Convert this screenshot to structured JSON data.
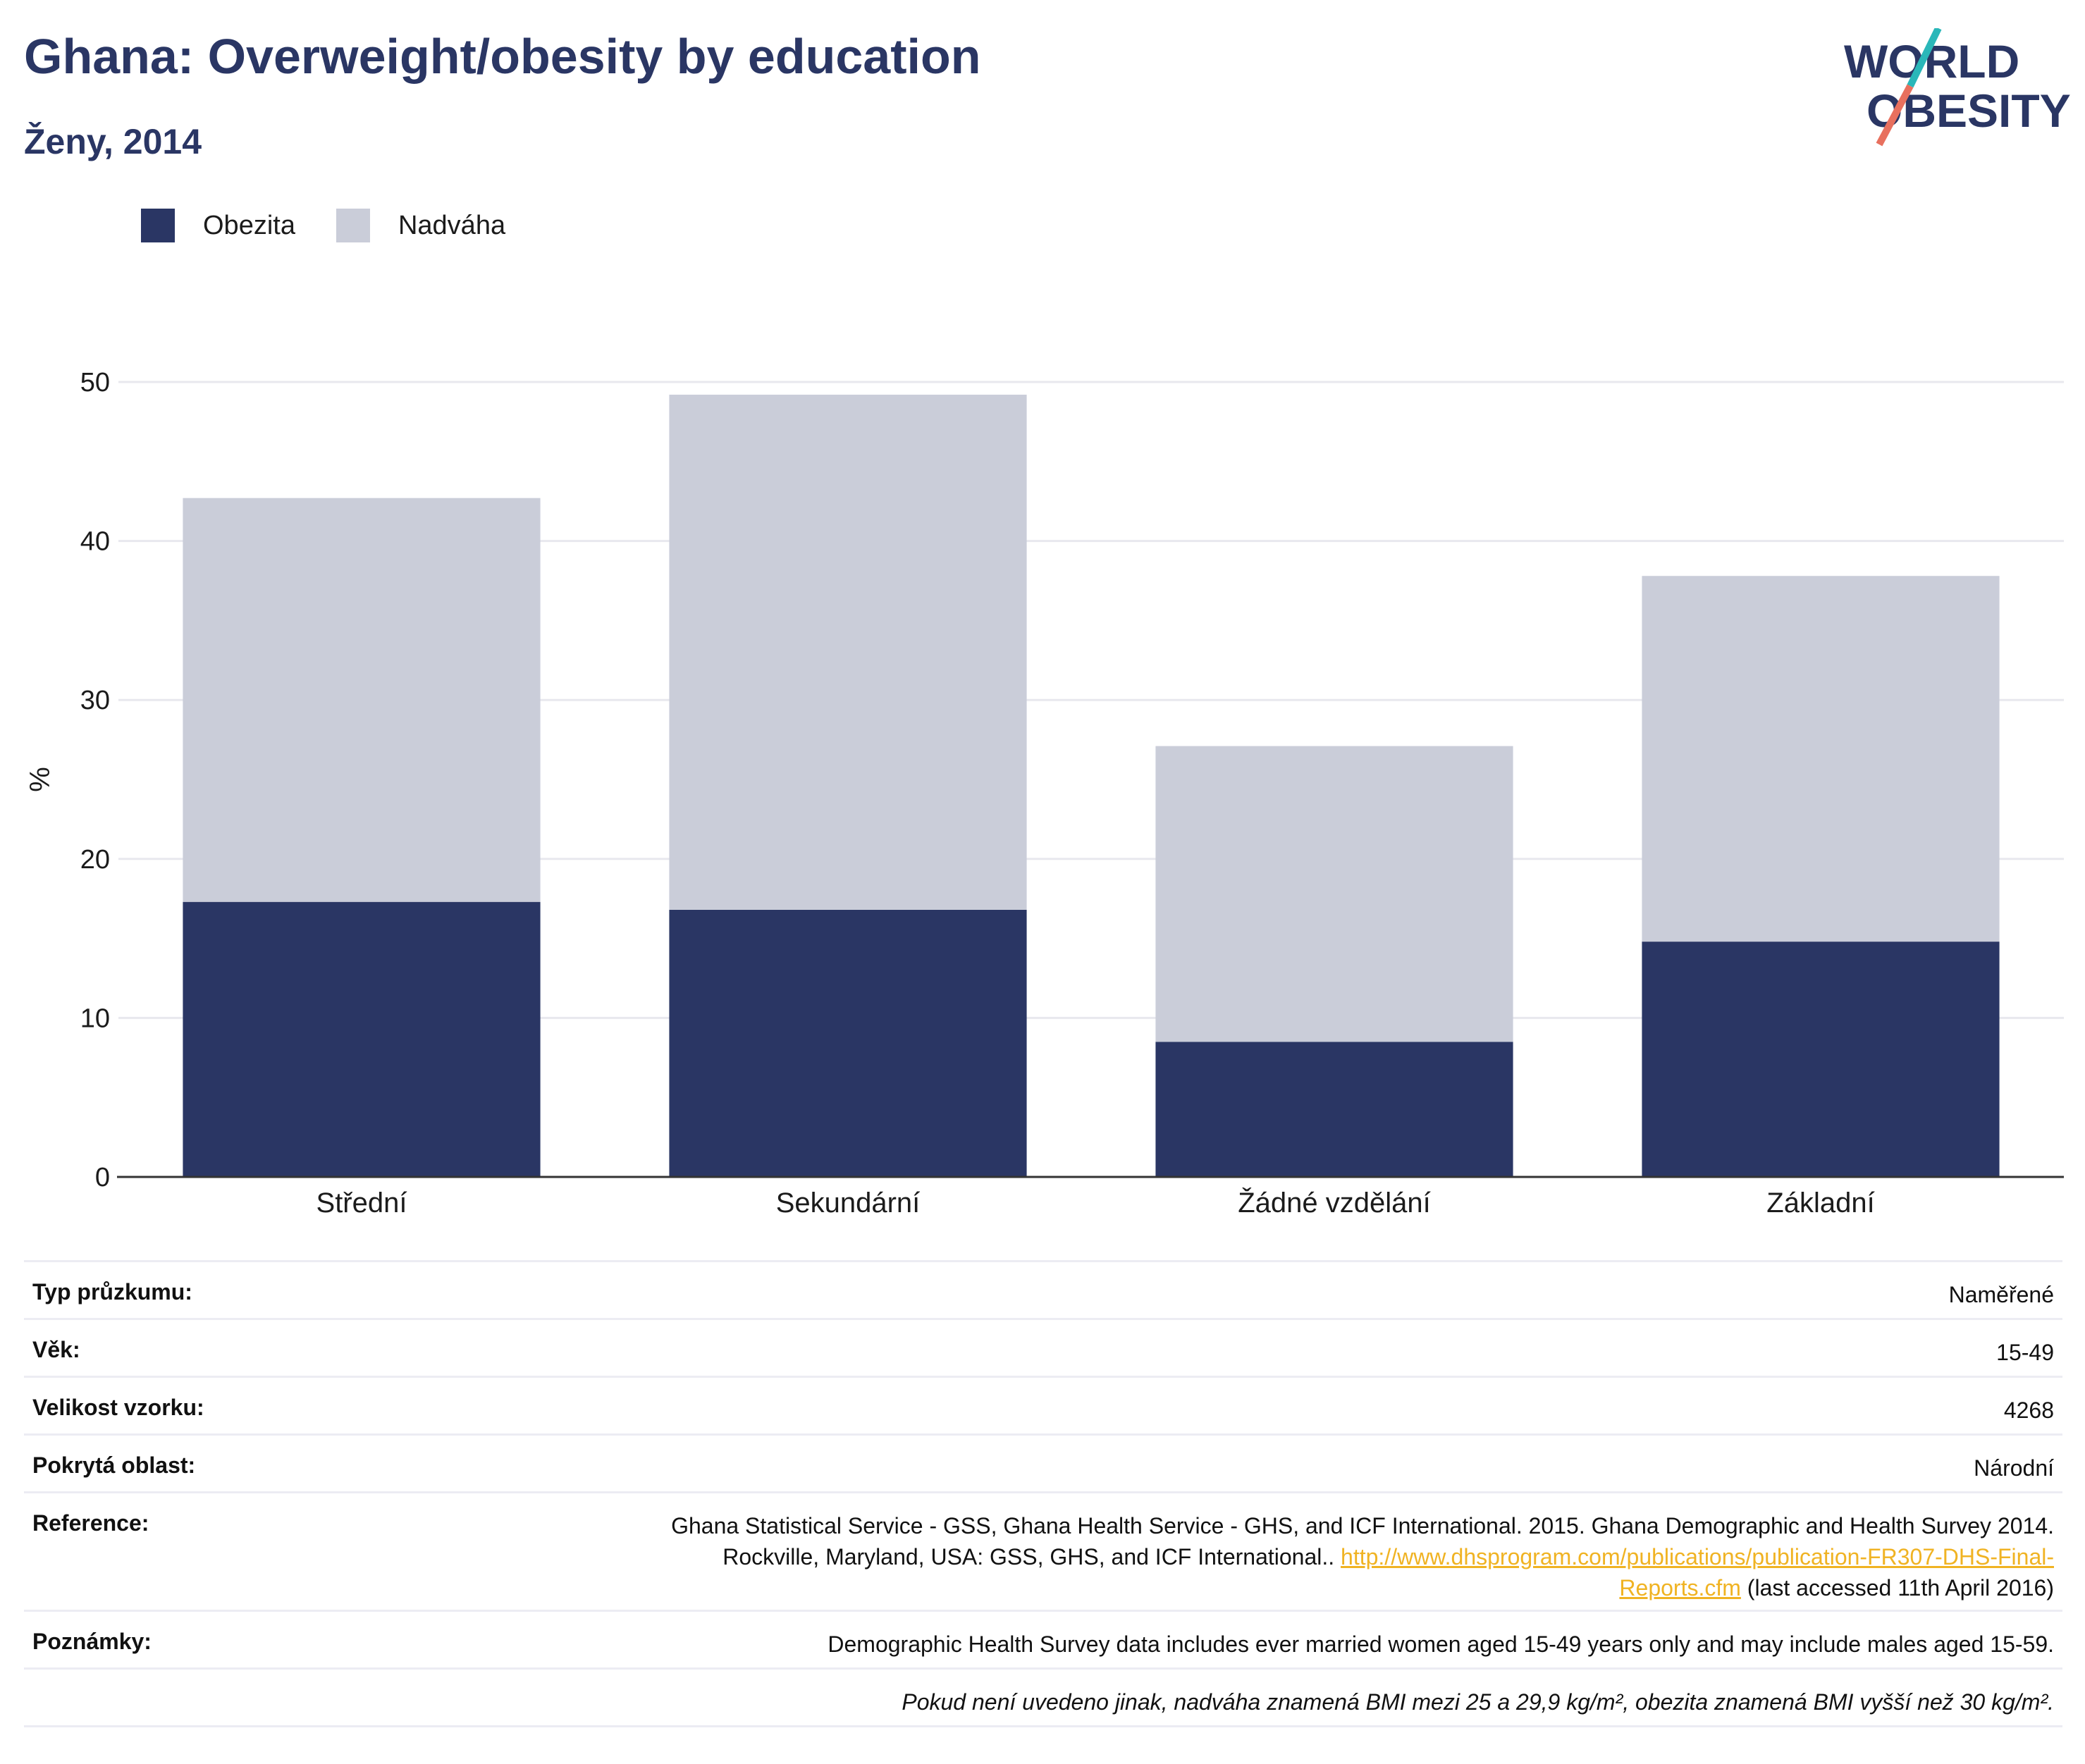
{
  "header": {
    "title": "Ghana: Overweight/obesity by education",
    "subtitle": "Ženy, 2014",
    "logo_line1": "WORLD",
    "logo_line2": "OBESITY"
  },
  "colors": {
    "obesity": "#2a3664",
    "overweight": "#cacdd9",
    "title": "#2a3664",
    "link": "#f0b323",
    "logo_teal": "#2ab7b9",
    "logo_coral": "#e8705e"
  },
  "chart_data": {
    "type": "bar",
    "stacked": true,
    "title": "Ghana: Overweight/obesity by education",
    "subtitle": "Ženy, 2014",
    "categories": [
      "Střední",
      "Sekundární",
      "Žádné vzdělání",
      "Základní"
    ],
    "series": [
      {
        "name": "Obezita",
        "values": [
          17.3,
          16.8,
          8.5,
          14.8
        ]
      },
      {
        "name": "Nadváha",
        "values": [
          25.4,
          32.4,
          18.6,
          23.0
        ]
      }
    ],
    "ylabel": "%",
    "xlabel": "",
    "ylim": [
      0,
      50
    ],
    "yticks": [
      0,
      10,
      20,
      30,
      40,
      50
    ],
    "grid": true,
    "legend": "top-left"
  },
  "info": {
    "survey_type": {
      "label": "Typ průzkumu:",
      "value": "Naměřené"
    },
    "age": {
      "label": "Věk:",
      "value": "15-49"
    },
    "sample": {
      "label": "Velikost vzorku:",
      "value": "4268"
    },
    "area": {
      "label": "Pokrytá oblast:",
      "value": "Národní"
    },
    "reference": {
      "label": "Reference:",
      "text1": "Ghana Statistical Service - GSS, Ghana Health Service - GHS, and ICF International. 2015. Ghana Demographic and Health Survey 2014.",
      "text2": "Rockville, Maryland, USA: GSS, GHS, and ICF International..",
      "link_part1": "http://www.dhsprogram.com/publications/publication-FR307-DHS-Final-",
      "link_part2": "Reports.cfm",
      "suffix": "(last accessed 11th April 2016)"
    },
    "notes": {
      "label": "Poznámky:",
      "value": "Demographic Health Survey data includes ever married women aged 15-49 years only and may include males aged 15-59."
    },
    "footnote": "Pokud není uvedeno jinak, nadváha znamená BMI mezi 25 a 29,9 kg/m², obezita znamená BMI vyšší než 30 kg/m²."
  }
}
